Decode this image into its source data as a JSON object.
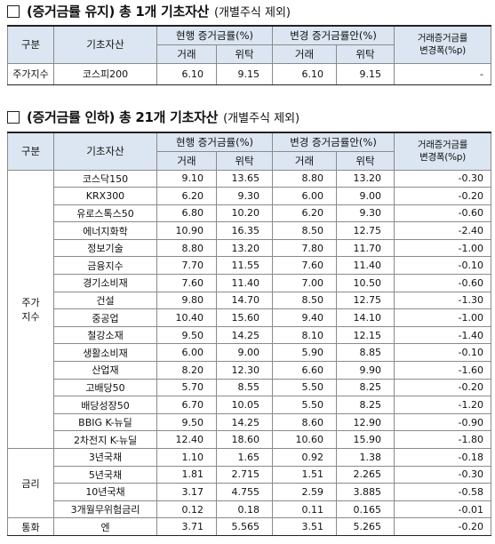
{
  "header_shared": {
    "group": "구분",
    "asset": "기초자산",
    "current": "현행 증거금률(%)",
    "proposed": "변경 증거금률안(%)",
    "change": [
      "거래증거금률",
      "변경폭(%p)"
    ],
    "sub": [
      "거래",
      "위탁",
      "거래",
      "위탁"
    ]
  },
  "section1": {
    "title": "(증거금률 유지) 총 1개 기초자산",
    "note": "(개별주식 제외)",
    "groups": [
      {
        "label": [
          "주가지수"
        ],
        "rows": [
          [
            "코스피200",
            "6.10",
            "9.15",
            "6.10",
            "9.15",
            "-"
          ]
        ]
      }
    ]
  },
  "section2": {
    "title": "(증거금률 인하) 총 21개 기초자산",
    "note": "(개별주식 제외)",
    "groups": [
      {
        "label": [
          "주가",
          "지수"
        ],
        "rows": [
          [
            "코스닥150",
            "9.10",
            "13.65",
            "8.80",
            "13.20",
            "-0.30"
          ],
          [
            "KRX300",
            "6.20",
            "9.30",
            "6.00",
            "9.00",
            "-0.20"
          ],
          [
            "유로스톡스50",
            "6.80",
            "10.20",
            "6.20",
            "9.30",
            "-0.60"
          ],
          [
            "에너지화학",
            "10.90",
            "16.35",
            "8.50",
            "12.75",
            "-2.40"
          ],
          [
            "정보기술",
            "8.80",
            "13.20",
            "7.80",
            "11.70",
            "-1.00"
          ],
          [
            "금융지수",
            "7.70",
            "11.55",
            "7.60",
            "11.40",
            "-0.10"
          ],
          [
            "경기소비재",
            "7.60",
            "11.40",
            "7.00",
            "10.50",
            "-0.60"
          ],
          [
            "건설",
            "9.80",
            "14.70",
            "8.50",
            "12.75",
            "-1.30"
          ],
          [
            "중공업",
            "10.40",
            "15.60",
            "9.40",
            "14.10",
            "-1.00"
          ],
          [
            "철강소재",
            "9.50",
            "14.25",
            "8.10",
            "12.15",
            "-1.40"
          ],
          [
            "생활소비재",
            "6.00",
            "9.00",
            "5.90",
            "8.85",
            "-0.10"
          ],
          [
            "산업재",
            "8.20",
            "12.30",
            "6.60",
            "9.90",
            "-1.60"
          ],
          [
            "고배당50",
            "5.70",
            "8.55",
            "5.50",
            "8.25",
            "-0.20"
          ],
          [
            "배당성장50",
            "6.70",
            "10.05",
            "5.50",
            "8.25",
            "-1.20"
          ],
          [
            "BBIG K-뉴딜",
            "9.50",
            "14.25",
            "8.60",
            "12.90",
            "-0.90"
          ],
          [
            "2차전지 K-뉴딜",
            "12.40",
            "18.60",
            "10.60",
            "15.90",
            "-1.80"
          ]
        ]
      },
      {
        "label": [
          "금리"
        ],
        "rows": [
          [
            "3년국채",
            "1.10",
            "1.65",
            "0.92",
            "1.38",
            "-0.18"
          ],
          [
            "5년국채",
            "1.81",
            "2.715",
            "1.51",
            "2.265",
            "-0.30"
          ],
          [
            "10년국채",
            "3.17",
            "4.755",
            "2.59",
            "3.885",
            "-0.58"
          ],
          [
            "3개월무위험금리",
            "0.12",
            "0.18",
            "0.11",
            "0.165",
            "-0.01"
          ]
        ]
      },
      {
        "label": [
          "통화"
        ],
        "rows": [
          [
            "엔",
            "3.71",
            "5.565",
            "3.51",
            "5.265",
            "-0.20"
          ]
        ]
      }
    ]
  }
}
